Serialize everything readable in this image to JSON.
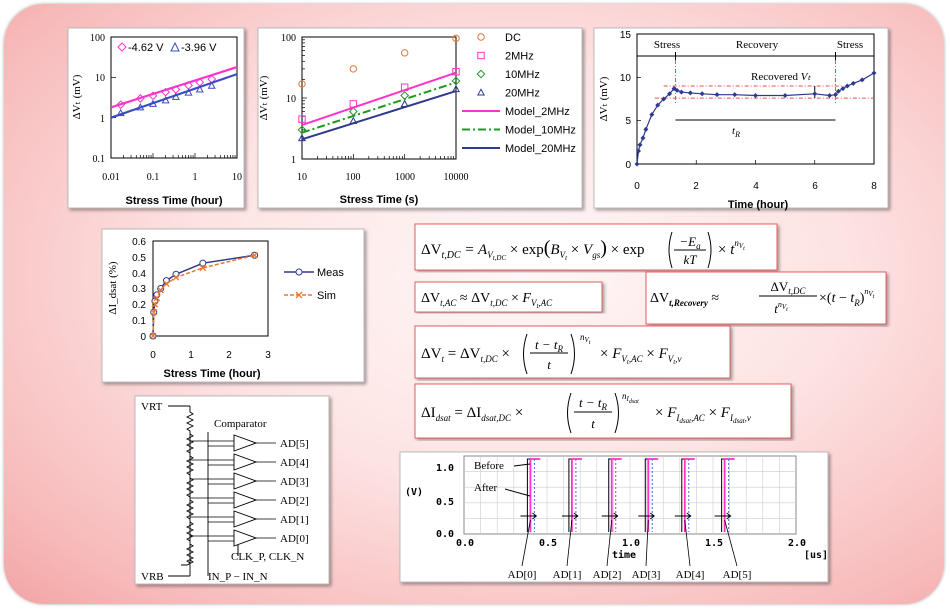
{
  "colors": {
    "magenta": "#ff33cc",
    "green": "#1c9a1c",
    "navy": "#2e3a8c",
    "orange": "#e8772e",
    "red_box": "#e06060",
    "recov": "#e65050"
  },
  "chart1": {
    "legend": [
      "-4.62 V",
      "-3.96 V"
    ],
    "xlabel": "Stress Time (hour)",
    "ylabel": "ΔVₜ (mV)",
    "xticks": [
      "0.01",
      "0.1",
      "1",
      "10"
    ],
    "yticks": [
      "100",
      "10",
      "1",
      "0.1"
    ]
  },
  "chart2": {
    "legend": [
      "DC",
      "2MHz",
      "10MHz",
      "20MHz",
      "Model_2MHz",
      "Model_10MHz",
      "Model_20MHz"
    ],
    "xlabel": "Stress Time (s)",
    "ylabel": "ΔVₜ (mV)",
    "xticks": [
      "10",
      "100",
      "1000",
      "10000"
    ],
    "yticks": [
      "100",
      "10",
      "1"
    ]
  },
  "chart3": {
    "phases": [
      "Stress",
      "Recovery",
      "Stress"
    ],
    "recovered_label": "Recovered",
    "recovered_var": "Vₜ",
    "tr_label": "t",
    "tr_sub": "R",
    "xlabel": "Time (hour)",
    "ylabel": "ΔVₜ (mV)",
    "xticks": [
      "0",
      "2",
      "4",
      "6",
      "8"
    ],
    "yticks": [
      "15",
      "10",
      "5",
      "0"
    ]
  },
  "chart4": {
    "legend": [
      "Meas",
      "Sim"
    ],
    "xlabel": "Stress Time (hour)",
    "ylabel": "ΔI_dsat (%)",
    "xticks": [
      "0",
      "1",
      "2",
      "3"
    ],
    "yticks": [
      "0.6",
      "0.5",
      "0.4",
      "0.3",
      "0.2",
      "0.1",
      "0"
    ]
  },
  "circuit": {
    "vrt": "VRT",
    "vrb": "VRB",
    "comparator": "Comparator",
    "outputs": [
      "AD[5]",
      "AD[4]",
      "AD[3]",
      "AD[2]",
      "AD[1]",
      "AD[0]"
    ],
    "clk": "CLK_P, CLK_N",
    "inputs": "IN_P − IN_N"
  },
  "timing": {
    "ylabel": "(V)",
    "xunit": "[us]",
    "xname": "time",
    "before": "Before",
    "after": "After",
    "yticks": [
      "1.0",
      "0.5",
      "0.0"
    ],
    "xticks": [
      "0.0",
      "0.5",
      "1.0",
      "1.5",
      "2.0"
    ],
    "labels": [
      "AD[0]",
      "AD[1]",
      "AD[2]",
      "AD[3]",
      "AD[4]",
      "AD[5]"
    ]
  },
  "equations": {
    "eq1": {
      "lhs": "ΔV",
      "sub": "t,DC",
      "a": "A",
      "a_sub": "V",
      "a_sub2": "t,DC",
      "exp": "exp",
      "b": "B",
      "b_sub": "V",
      "b_sub2": "t",
      "vgs": "V",
      "vgs_sub": "gs",
      "ea": "−E",
      "ea_sub": "a",
      "kt": "kT",
      "t": "t",
      "n": "n",
      "n_sub": "V",
      "n_sub2": "t"
    },
    "eq2": {
      "lhs": "ΔV",
      "sub": "t,AC",
      "rhs": "ΔV",
      "rhs_sub": "t,DC",
      "f": "F",
      "f_sub": "V",
      "f_sub2": "t",
      "f_sub3": ",AC"
    },
    "eq3": {
      "lhs": "ΔV",
      "sub": "t,Recovery",
      "num": "ΔV",
      "num_sub": "t,DC",
      "den": "t",
      "den_sup": "n",
      "den_sup2": "V",
      "den_sup3": "t",
      "t": "t",
      "tr": "t",
      "tr_sub": "R",
      "n": "n",
      "n_sub": "V",
      "n_sub2": "t"
    },
    "eq4": {
      "lhs": "ΔV",
      "sub": "t",
      "rhs": "ΔV",
      "rhs_sub": "t,DC",
      "num": "t − t",
      "num_sub": "R",
      "den": "t",
      "n": "n",
      "n_sub": "V",
      "n_sub2": "t",
      "f1": "F",
      "f1_sub": "V",
      "f1_sub2": "t",
      "f1_sub3": ",AC",
      "f2": "F",
      "f2_sub": "V",
      "f2_sub2": "t",
      "f2_sub3": ",v"
    },
    "eq5": {
      "lhs": "ΔI",
      "sub": "dsat",
      "rhs": "ΔI",
      "rhs_sub": "dsat,DC",
      "num": "t − t",
      "num_sub": "R",
      "den": "t",
      "n": "n",
      "n_sub": "I",
      "n_sub2": "dsat",
      "f1": "F",
      "f1_sub": "I",
      "f1_sub2": "dsat",
      "f1_sub3": ",AC",
      "f2": "F",
      "f2_sub": "I",
      "f2_sub2": "dsat",
      "f2_sub3": ",v"
    }
  },
  "chart_data": [
    {
      "type": "scatter",
      "xscale": "log",
      "yscale": "log",
      "xlim": [
        0.01,
        10
      ],
      "ylim": [
        0.1,
        100
      ],
      "series": [
        {
          "name": "-4.62 V",
          "marker": "diamond",
          "color": "#ff33cc",
          "x": [
            0.017,
            0.05,
            0.1,
            0.2,
            0.35,
            0.7,
            1.3,
            2.5
          ],
          "y": [
            2.1,
            3.0,
            3.5,
            4.3,
            5.0,
            6.3,
            7.5,
            9.0
          ],
          "fit": [
            [
              0.01,
              1.8
            ],
            [
              10,
              18
            ]
          ]
        },
        {
          "name": "-3.96 V",
          "marker": "triangle",
          "color": "#3b4cc0",
          "x": [
            0.017,
            0.05,
            0.1,
            0.2,
            0.35,
            0.7,
            1.3,
            2.5
          ],
          "y": [
            1.3,
            1.8,
            2.2,
            2.7,
            3.3,
            4.2,
            5.0,
            6.2
          ],
          "fit": [
            [
              0.01,
              1.0
            ],
            [
              10,
              12
            ]
          ]
        }
      ]
    },
    {
      "type": "scatter",
      "xscale": "log",
      "yscale": "log",
      "xlim": [
        10,
        10000
      ],
      "ylim": [
        1,
        100
      ],
      "series": [
        {
          "name": "DC",
          "marker": "circle",
          "color": "#e8772e",
          "x": [
            10,
            100,
            1000,
            10000
          ],
          "y": [
            17,
            30,
            55,
            95
          ]
        },
        {
          "name": "2MHz",
          "marker": "square",
          "color": "#ff33cc",
          "x": [
            10,
            100,
            1000,
            10000
          ],
          "y": [
            4.5,
            8,
            15,
            27
          ]
        },
        {
          "name": "10MHz",
          "marker": "diamond",
          "color": "#1c9a1c",
          "x": [
            10,
            100,
            1000,
            10000
          ],
          "y": [
            3.0,
            6,
            11,
            19
          ]
        },
        {
          "name": "20MHz",
          "marker": "triangle",
          "color": "#2e3a8c",
          "x": [
            10,
            100,
            1000,
            10000
          ],
          "y": [
            2.2,
            4.2,
            8,
            14
          ]
        },
        {
          "name": "Model_2MHz",
          "line": "solid",
          "color": "#ff33cc",
          "x": [
            10,
            10000
          ],
          "y": [
            3.6,
            26
          ]
        },
        {
          "name": "Model_10MHz",
          "line": "dashdot",
          "color": "#1c9a1c",
          "x": [
            10,
            10000
          ],
          "y": [
            2.7,
            18
          ]
        },
        {
          "name": "Model_20MHz",
          "line": "solid",
          "color": "#2e3a8c",
          "x": [
            10,
            10000
          ],
          "y": [
            2.1,
            13
          ]
        }
      ]
    },
    {
      "type": "line",
      "xlim": [
        0,
        8
      ],
      "ylim": [
        0,
        15
      ],
      "series": [
        {
          "name": "",
          "color": "#2e3a8c",
          "x": [
            0,
            0.05,
            0.1,
            0.2,
            0.3,
            0.5,
            0.7,
            0.9,
            1.1,
            1.25,
            1.35,
            1.5,
            1.8,
            2.2,
            2.7,
            3.3,
            4.0,
            5.0,
            6.0,
            6.5,
            6.7,
            6.8,
            6.95,
            7.1,
            7.3,
            7.6,
            8.0
          ],
          "y": [
            0,
            1.5,
            2.2,
            3.0,
            4.0,
            5.7,
            6.8,
            7.5,
            8.1,
            8.7,
            8.5,
            8.3,
            8.2,
            8.1,
            8.0,
            8.0,
            7.9,
            7.9,
            8.1,
            7.9,
            8.0,
            8.4,
            8.7,
            9.0,
            9.3,
            9.7,
            10.5
          ]
        }
      ],
      "annotations": {
        "stress_end": 1.3,
        "recovery_end": 6.7,
        "recovered_top": 9.0,
        "recovered_bottom": 7.6
      }
    },
    {
      "type": "line",
      "xlim": [
        0,
        3
      ],
      "ylim": [
        0,
        0.6
      ],
      "series": [
        {
          "name": "Meas",
          "marker": "circle",
          "color": "#2e3a8c",
          "x": [
            0,
            0.02,
            0.05,
            0.1,
            0.2,
            0.35,
            0.6,
            1.3,
            2.65
          ],
          "y": [
            0,
            0.15,
            0.22,
            0.26,
            0.3,
            0.35,
            0.39,
            0.46,
            0.51
          ]
        },
        {
          "name": "Sim",
          "marker": "cross",
          "color": "#e8772e",
          "x": [
            0,
            0.02,
            0.05,
            0.1,
            0.2,
            0.35,
            0.6,
            1.3,
            2.65
          ],
          "y": [
            0,
            0.15,
            0.2,
            0.24,
            0.29,
            0.33,
            0.37,
            0.43,
            0.51
          ]
        }
      ]
    }
  ]
}
